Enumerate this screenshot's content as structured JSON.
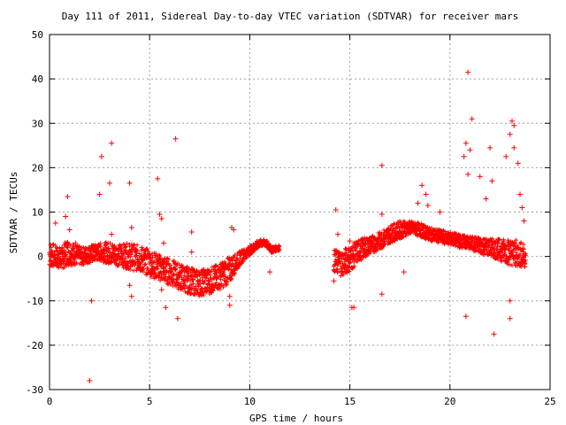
{
  "chart_data": {
    "type": "scatter",
    "title": "Day 111 of 2011, Sidereal Day-to-day VTEC variation (SDTVAR) for receiver mars",
    "xlabel": "GPS time / hours",
    "ylabel": "SDTVAR / TECUs",
    "xlim": [
      0,
      25
    ],
    "ylim": [
      -30,
      50
    ],
    "xticks": [
      0,
      5,
      10,
      15,
      20,
      25
    ],
    "yticks": [
      -30,
      -20,
      -10,
      0,
      10,
      20,
      30,
      40,
      50
    ],
    "grid": true,
    "legend": "none",
    "marker": "+",
    "color": "#ff0000",
    "series": [
      {
        "band_points": [
          [
            0.0,
            0.5,
            3
          ],
          [
            0.3,
            0.0,
            2.5
          ],
          [
            0.6,
            -0.5,
            2.5
          ],
          [
            0.9,
            1.0,
            3
          ],
          [
            1.2,
            0.5,
            2.5
          ],
          [
            1.6,
            0.0,
            2
          ],
          [
            2.0,
            0.5,
            2
          ],
          [
            2.5,
            1.0,
            2
          ],
          [
            3.0,
            0.8,
            2.5
          ],
          [
            3.5,
            0.3,
            2.5
          ],
          [
            4.0,
            0.0,
            3
          ],
          [
            4.5,
            -0.5,
            3
          ],
          [
            5.0,
            -1.5,
            3
          ],
          [
            5.5,
            -2.5,
            3
          ],
          [
            6.0,
            -3.5,
            3
          ],
          [
            6.5,
            -4.5,
            3
          ],
          [
            7.0,
            -5.5,
            3
          ],
          [
            7.5,
            -6.0,
            3
          ],
          [
            8.0,
            -5.5,
            3
          ],
          [
            8.5,
            -4.5,
            3
          ],
          [
            9.0,
            -3.0,
            3
          ],
          [
            9.3,
            -1.5,
            2
          ],
          [
            9.6,
            0.0,
            1.5
          ],
          [
            9.9,
            1.0,
            1
          ],
          [
            10.2,
            2.0,
            1
          ],
          [
            10.5,
            3.0,
            0.8
          ],
          [
            10.8,
            3.0,
            0.8
          ],
          [
            11.1,
            1.5,
            0.7
          ],
          [
            11.5,
            2.0,
            0.6
          ],
          [
            14.2,
            -1.0,
            2.5
          ],
          [
            14.6,
            -1.5,
            3
          ],
          [
            15.0,
            -0.5,
            3
          ],
          [
            15.5,
            1.5,
            2.5
          ],
          [
            16.0,
            2.5,
            2
          ],
          [
            16.5,
            3.5,
            2
          ],
          [
            17.0,
            5.0,
            2
          ],
          [
            17.5,
            6.0,
            2
          ],
          [
            18.0,
            6.5,
            1.5
          ],
          [
            18.5,
            6.0,
            1.5
          ],
          [
            19.0,
            5.0,
            1.5
          ],
          [
            19.5,
            4.5,
            1.5
          ],
          [
            20.0,
            4.0,
            1.5
          ],
          [
            20.5,
            3.5,
            1.5
          ],
          [
            21.0,
            3.0,
            1.5
          ],
          [
            21.5,
            2.5,
            2
          ],
          [
            22.0,
            2.0,
            2
          ],
          [
            22.5,
            1.5,
            2.5
          ],
          [
            23.0,
            1.0,
            3
          ],
          [
            23.5,
            0.5,
            3
          ],
          [
            23.8,
            0.0,
            2.5
          ]
        ],
        "spike_points": [
          [
            0.3,
            7.5
          ],
          [
            0.8,
            9
          ],
          [
            0.9,
            13.5
          ],
          [
            1.0,
            6
          ],
          [
            1.3,
            3
          ],
          [
            2.1,
            -10
          ],
          [
            2.0,
            -28
          ],
          [
            2.5,
            14
          ],
          [
            2.6,
            22.5
          ],
          [
            3.1,
            25.5
          ],
          [
            3.0,
            16.5
          ],
          [
            3.1,
            5
          ],
          [
            4.0,
            16.5
          ],
          [
            4.1,
            6.5
          ],
          [
            4.0,
            -6.5
          ],
          [
            4.1,
            -9
          ],
          [
            5.4,
            17.5
          ],
          [
            5.5,
            9.5
          ],
          [
            5.6,
            8.5
          ],
          [
            5.6,
            -7.5
          ],
          [
            5.7,
            3
          ],
          [
            5.8,
            -11.5
          ],
          [
            6.3,
            26.5
          ],
          [
            6.4,
            -14
          ],
          [
            7.1,
            5.5
          ],
          [
            7.1,
            1
          ],
          [
            9.1,
            6.5
          ],
          [
            9.2,
            6
          ],
          [
            9.0,
            -9
          ],
          [
            9.0,
            -11
          ],
          [
            11.0,
            -3.5
          ],
          [
            14.2,
            -5.5
          ],
          [
            14.3,
            10.5
          ],
          [
            14.4,
            5
          ],
          [
            15.1,
            -11.5
          ],
          [
            15.2,
            -11.5
          ],
          [
            15.0,
            3.5
          ],
          [
            16.6,
            20.5
          ],
          [
            16.6,
            -8.5
          ],
          [
            16.6,
            9.5
          ],
          [
            17.7,
            -3.5
          ],
          [
            18.4,
            12
          ],
          [
            18.6,
            16
          ],
          [
            18.8,
            14
          ],
          [
            18.9,
            11.5
          ],
          [
            19.5,
            10
          ],
          [
            20.7,
            22.5
          ],
          [
            20.8,
            25.5
          ],
          [
            20.9,
            18.5
          ],
          [
            20.9,
            41.5
          ],
          [
            21.0,
            24
          ],
          [
            21.1,
            31
          ],
          [
            20.8,
            -13.5
          ],
          [
            20.5,
            2
          ],
          [
            21.5,
            18
          ],
          [
            21.8,
            13
          ],
          [
            22.0,
            24.5
          ],
          [
            22.1,
            17
          ],
          [
            22.2,
            -17.5
          ],
          [
            22.8,
            22.5
          ],
          [
            23.0,
            27.5
          ],
          [
            23.1,
            30.5
          ],
          [
            23.2,
            29.5
          ],
          [
            23.2,
            24.5
          ],
          [
            23.0,
            -10
          ],
          [
            23.0,
            -14
          ],
          [
            23.4,
            21
          ],
          [
            23.5,
            14
          ],
          [
            23.6,
            11
          ],
          [
            23.7,
            8
          ],
          [
            23.3,
            -2
          ],
          [
            22.5,
            1
          ]
        ]
      }
    ]
  }
}
